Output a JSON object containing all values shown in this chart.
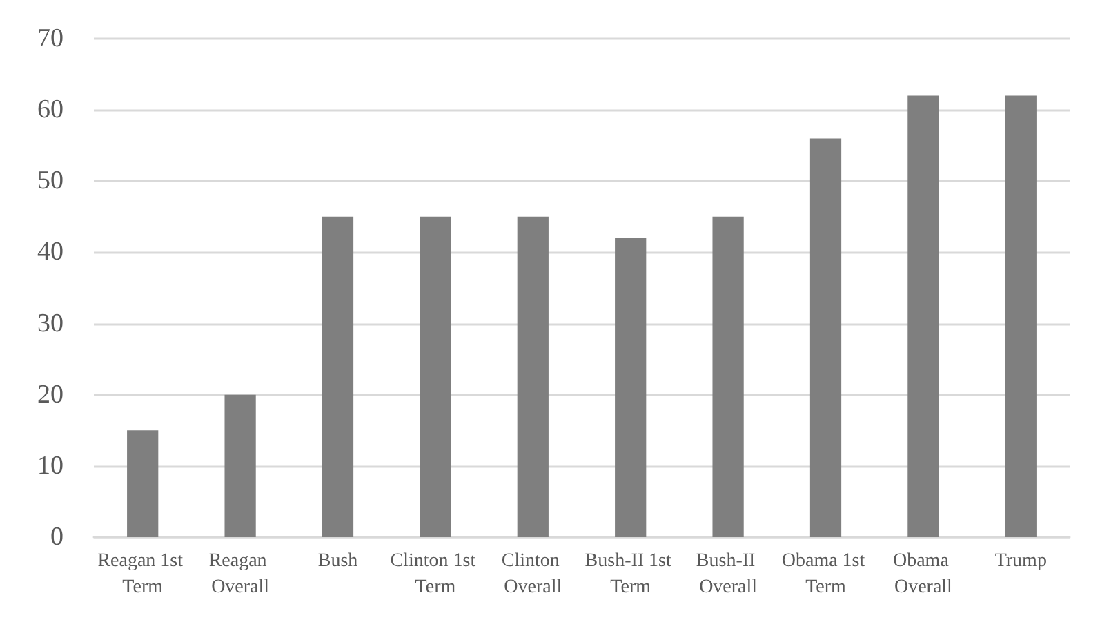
{
  "chart_data": {
    "type": "bar",
    "categories": [
      "Reagan 1st Term",
      "Reagan Overall",
      "Bush",
      "Clinton 1st Term",
      "Clinton Overall",
      "Bush-II 1st Term",
      "Bush-II Overall",
      "Obama 1st Term",
      "Obama Overall",
      "Trump"
    ],
    "values": [
      15,
      20,
      45,
      45,
      45,
      42,
      45,
      56,
      62,
      62
    ],
    "color": "#7f7f7f",
    "ylim": [
      0,
      70
    ],
    "yticks": [
      0,
      10,
      20,
      30,
      40,
      50,
      60,
      70
    ],
    "grid": "y"
  }
}
